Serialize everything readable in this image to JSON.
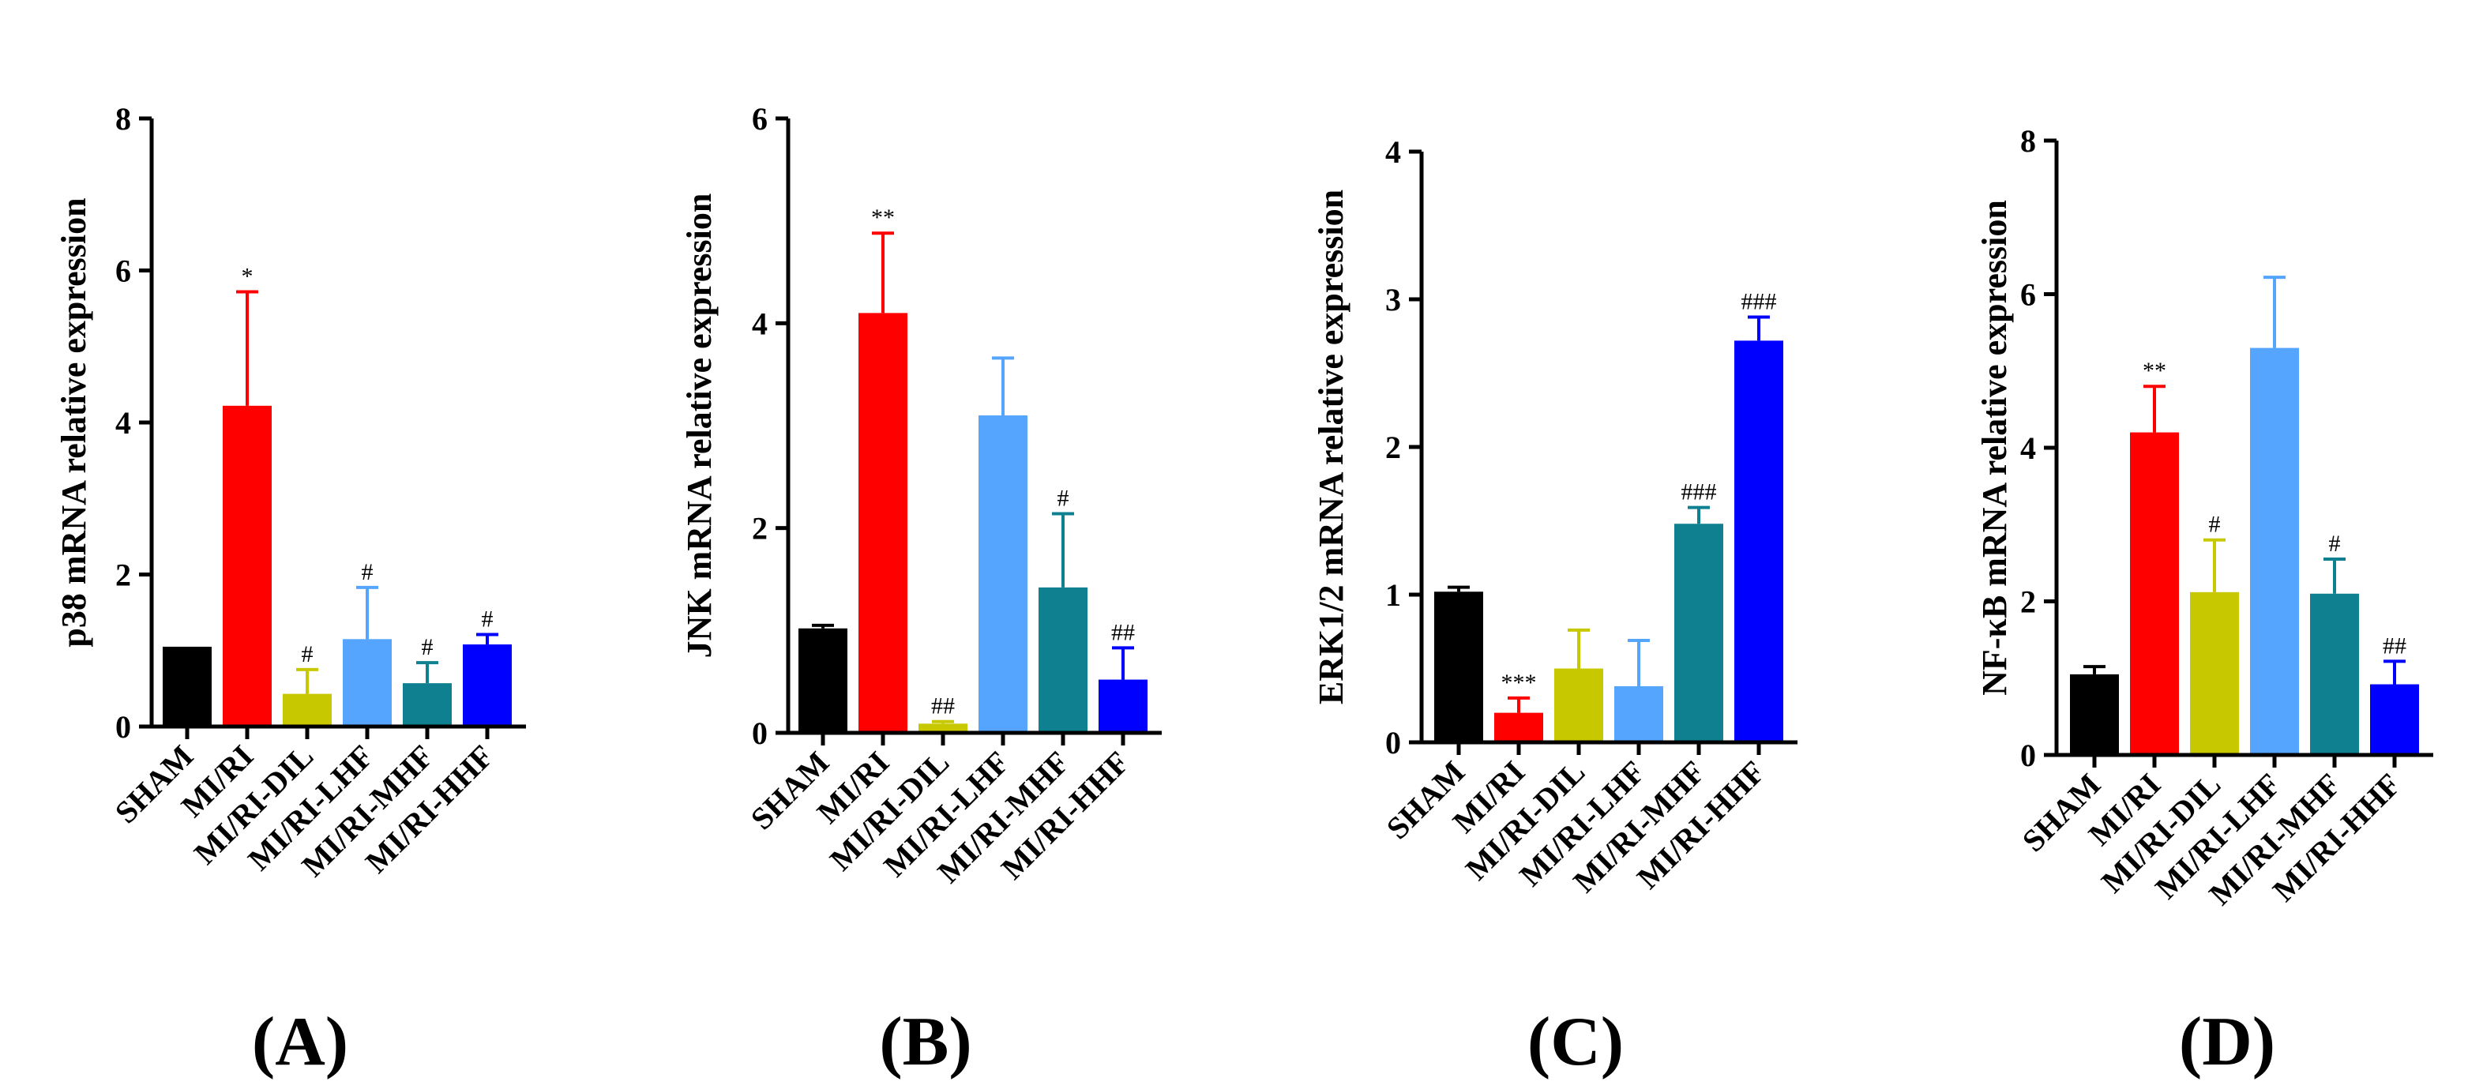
{
  "chart_data": [
    {
      "type": "bar",
      "panel_label": "(A)",
      "ylabel": "p38 mRNA relative expression",
      "ylim": [
        0,
        8
      ],
      "yticks": [
        0,
        2,
        4,
        6,
        8
      ],
      "categories": [
        "SHAM",
        "MI/RI",
        "MI/RI-DIL",
        "MI/RI-LHF",
        "MI/RI-MHF",
        "MI/RI-HHF"
      ],
      "values": [
        1.05,
        4.22,
        0.43,
        1.15,
        0.57,
        1.08
      ],
      "errors": [
        0.0,
        1.5,
        0.32,
        0.68,
        0.27,
        0.13
      ],
      "significance": [
        "",
        "*",
        "#",
        "#",
        "#",
        "#"
      ],
      "colors": [
        "#000000",
        "#ff0000",
        "#c8c800",
        "#55a5ff",
        "#0f8090",
        "#0000ff"
      ]
    },
    {
      "type": "bar",
      "panel_label": "(B)",
      "ylabel": "JNK mRNA relative expression",
      "ylim": [
        0,
        6
      ],
      "yticks": [
        0,
        2,
        4,
        6
      ],
      "categories": [
        "SHAM",
        "MI/RI",
        "MI/RI-DIL",
        "MI/RI-LHF",
        "MI/RI-MHF",
        "MI/RI-HHF"
      ],
      "values": [
        1.02,
        4.1,
        0.09,
        3.1,
        1.42,
        0.52
      ],
      "errors": [
        0.03,
        0.78,
        0.02,
        0.56,
        0.72,
        0.31
      ],
      "significance": [
        "",
        "**",
        "##",
        "",
        "#",
        "##"
      ],
      "colors": [
        "#000000",
        "#ff0000",
        "#c8c800",
        "#55a5ff",
        "#0f8090",
        "#0000ff"
      ]
    },
    {
      "type": "bar",
      "panel_label": "(C)",
      "ylabel": "ERK1/2 mRNA relative expression",
      "ylim": [
        0,
        4
      ],
      "yticks": [
        0,
        1,
        2,
        3,
        4
      ],
      "categories": [
        "SHAM",
        "MI/RI",
        "MI/RI-DIL",
        "MI/RI-LHF",
        "MI/RI-MHF",
        "MI/RI-HHF"
      ],
      "values": [
        1.02,
        0.2,
        0.5,
        0.38,
        1.48,
        2.72
      ],
      "errors": [
        0.03,
        0.1,
        0.26,
        0.31,
        0.11,
        0.16
      ],
      "significance": [
        "",
        "***",
        "",
        "",
        "###",
        "###"
      ],
      "colors": [
        "#000000",
        "#ff0000",
        "#c8c800",
        "#55a5ff",
        "#0f8090",
        "#0000ff"
      ]
    },
    {
      "type": "bar",
      "panel_label": "(D)",
      "ylabel": "NF-κB mRNA relative expression",
      "ylim": [
        0,
        8
      ],
      "yticks": [
        0,
        2,
        4,
        6,
        8
      ],
      "categories": [
        "SHAM",
        "MI/RI",
        "MI/RI-DIL",
        "MI/RI-LHF",
        "MI/RI-MHF",
        "MI/RI-HHF"
      ],
      "values": [
        1.05,
        4.2,
        2.12,
        5.3,
        2.1,
        0.92
      ],
      "errors": [
        0.1,
        0.6,
        0.68,
        0.92,
        0.45,
        0.3
      ],
      "significance": [
        "",
        "**",
        "#",
        "",
        "#",
        "##"
      ],
      "colors": [
        "#000000",
        "#ff0000",
        "#c8c800",
        "#55a5ff",
        "#0f8090",
        "#0000ff"
      ]
    }
  ]
}
